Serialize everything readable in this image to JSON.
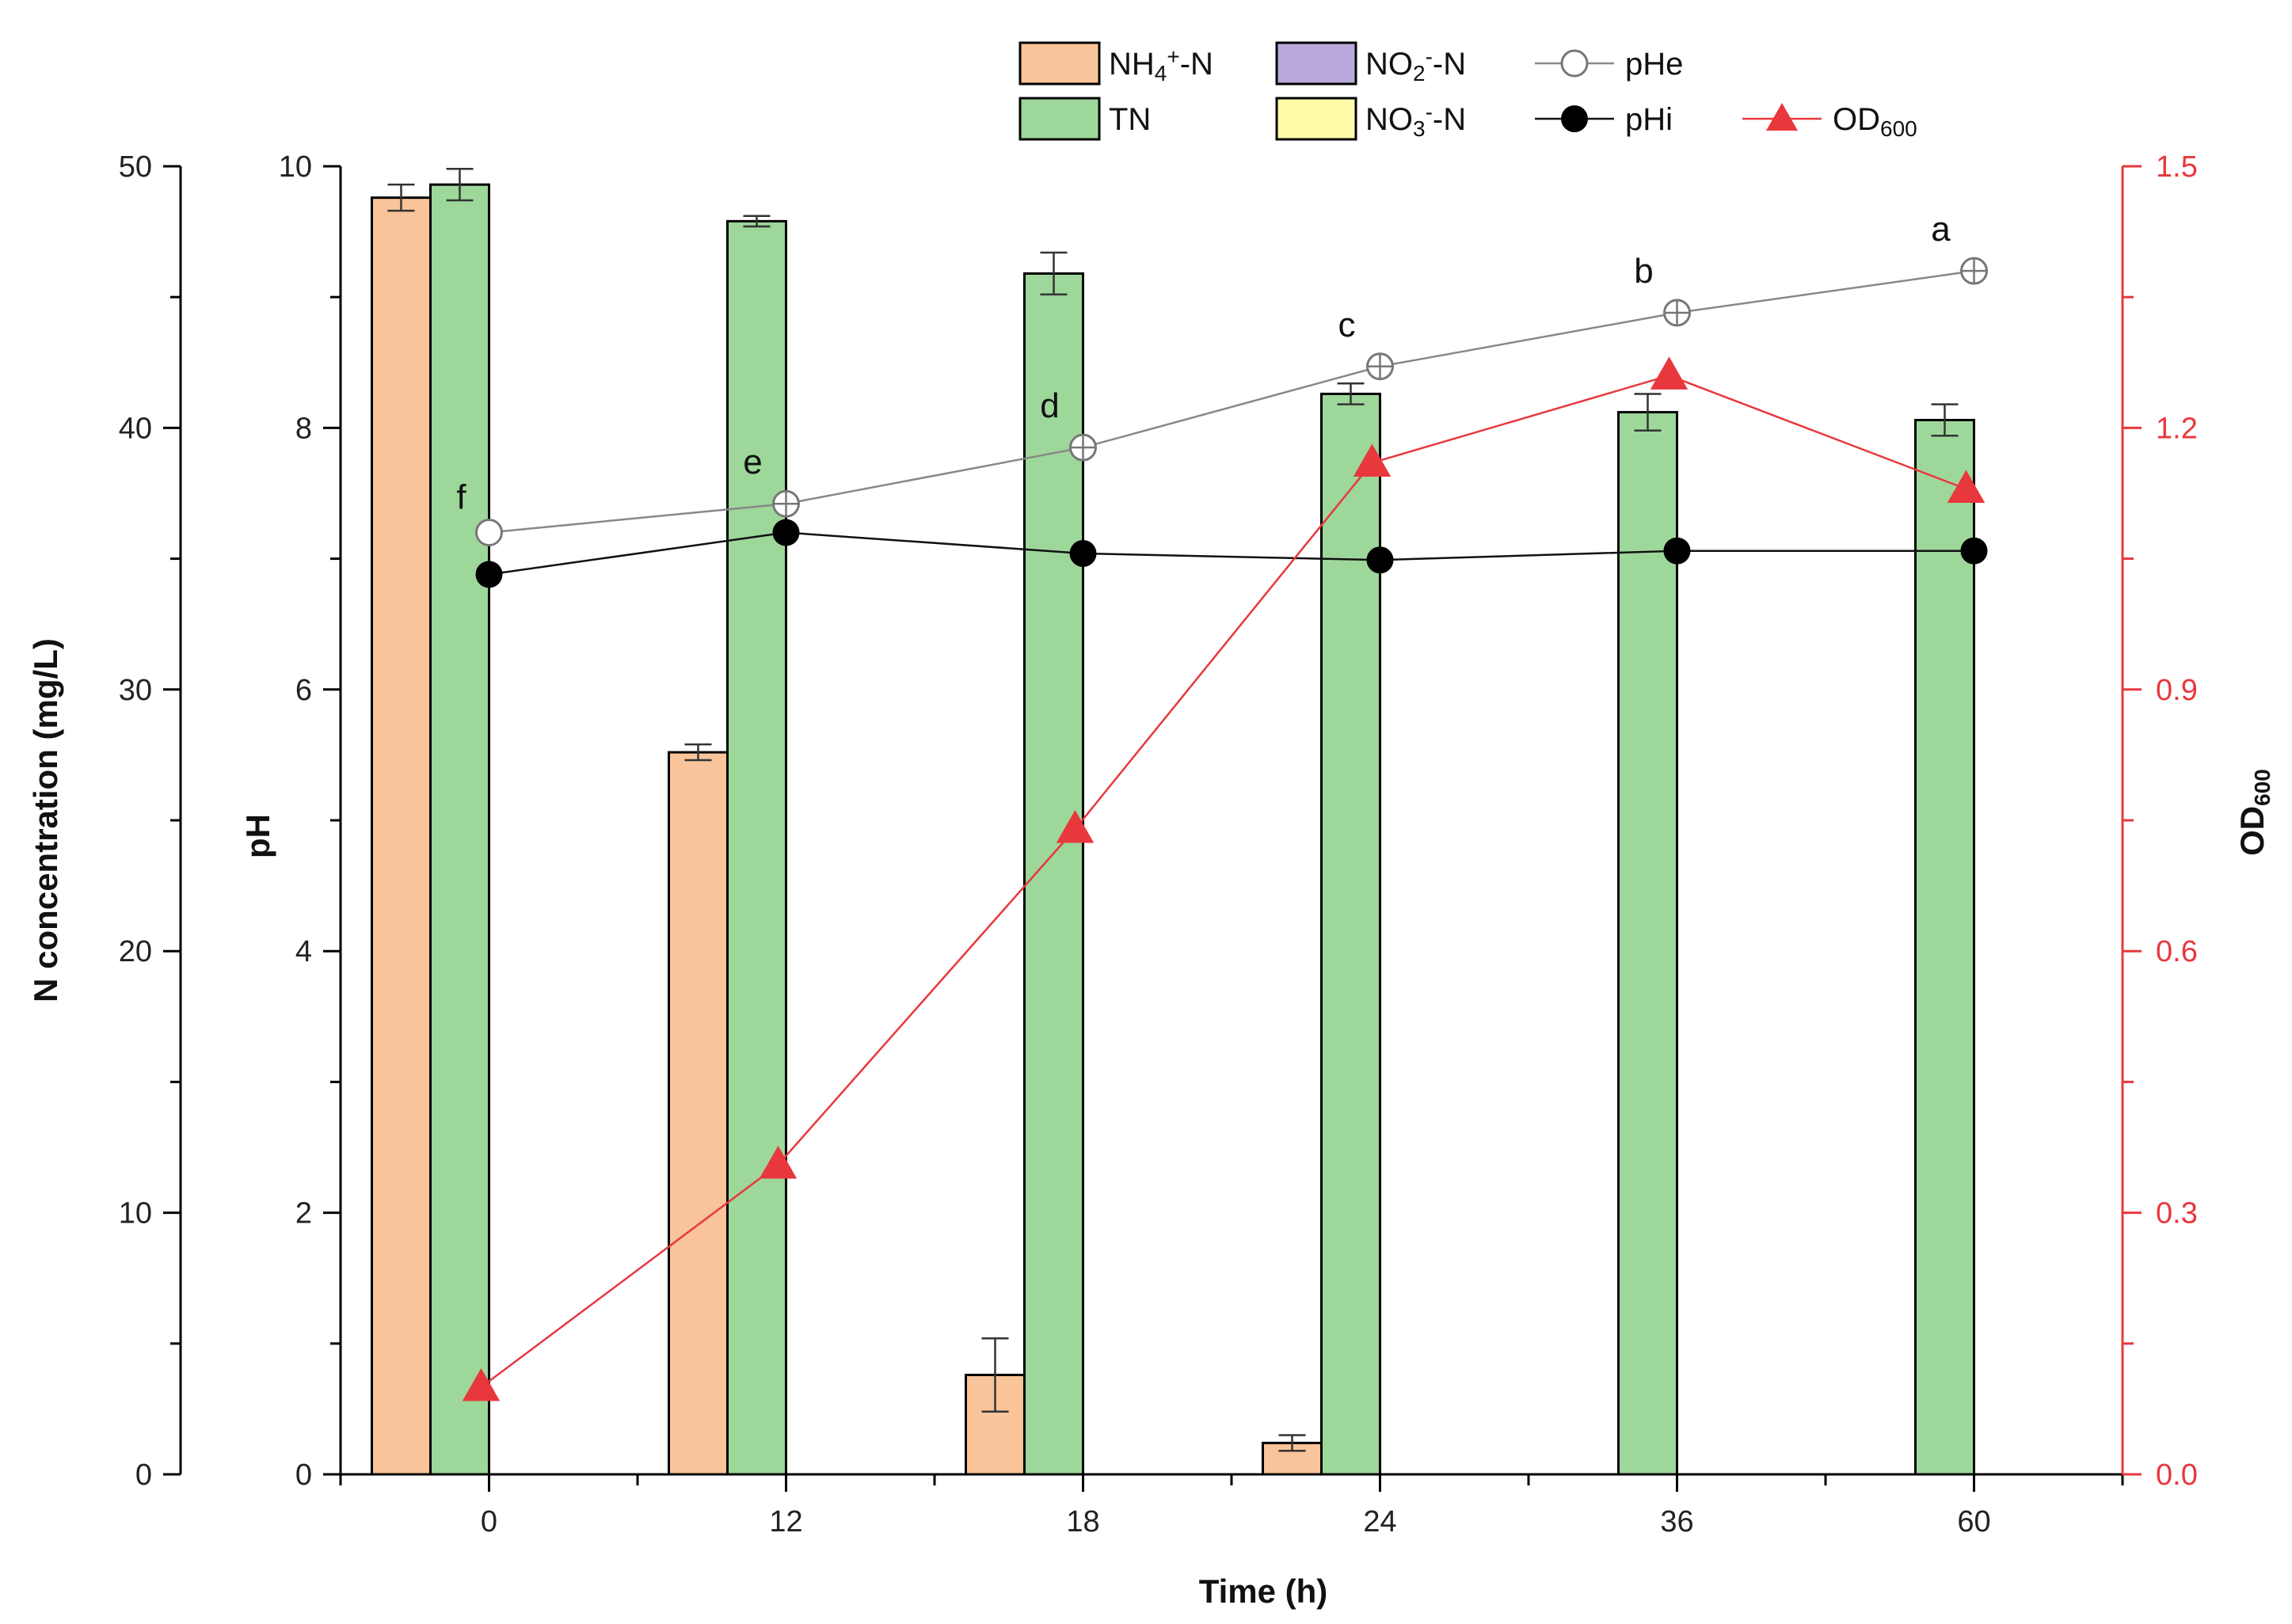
{
  "chart_data": {
    "type": "bar",
    "categories": [
      "0",
      "12",
      "18",
      "24",
      "36",
      "60"
    ],
    "xlabel": "Time (h)",
    "ylabel_left": "N concentration (mg/L)",
    "ylabel_ph": "pH",
    "ylabel_right_main": "OD",
    "ylabel_right_sub": "600",
    "ylim_left": [
      0,
      50
    ],
    "yticks_left": [
      0,
      10,
      20,
      30,
      40,
      50
    ],
    "ylim_ph": [
      0,
      10
    ],
    "yticks_ph": [
      0,
      2,
      4,
      6,
      8,
      10
    ],
    "ylim_right": [
      0,
      1.5
    ],
    "yticks_right": [
      "0.0",
      "0.3",
      "0.6",
      "0.9",
      "1.2",
      "1.5"
    ],
    "bar_series": [
      {
        "name": "NH4+-N",
        "label_main": "NH",
        "label_sub": "4",
        "label_sup": "+",
        "label_tail": "-N",
        "color": "#F9C49A",
        "values": [
          48.8,
          27.6,
          3.8,
          1.2,
          0,
          0
        ],
        "errors": [
          0.5,
          0.3,
          1.4,
          0.3,
          0,
          0
        ]
      },
      {
        "name": "TN",
        "label_main": "TN",
        "color": "#9ED79A",
        "values": [
          49.3,
          47.9,
          45.9,
          41.3,
          40.6,
          40.3
        ],
        "errors": [
          0.6,
          0.2,
          0.8,
          0.4,
          0.7,
          0.6
        ]
      },
      {
        "name": "NO2--N",
        "label_main": "NO",
        "label_sub": "2",
        "label_sup": "-",
        "label_tail": "-N",
        "color": "#B9A8D9",
        "values": [
          0,
          0,
          0,
          0,
          0,
          0
        ]
      },
      {
        "name": "NO3--N",
        "label_main": "NO",
        "label_sub": "3",
        "label_sup": "-",
        "label_tail": "-N",
        "color": "#FFFBA8",
        "values": [
          0,
          0,
          0,
          0,
          0,
          0
        ]
      }
    ],
    "line_series": [
      {
        "name": "pHe",
        "axis": "ph",
        "color": "#888888",
        "marker": "open-circle",
        "values": [
          7.2,
          7.42,
          7.85,
          8.47,
          8.88,
          9.2
        ],
        "letters": [
          "f",
          "e",
          "d",
          "c",
          "b",
          "a"
        ]
      },
      {
        "name": "pHi",
        "axis": "ph",
        "color": "#000000",
        "marker": "filled-circle",
        "values": [
          6.88,
          7.2,
          7.04,
          6.99,
          7.06,
          7.06
        ]
      },
      {
        "name": "OD600",
        "label_main": "OD",
        "label_sub": "600",
        "axis": "right",
        "color": "#E8383D",
        "marker": "triangle",
        "values": [
          0.1,
          0.355,
          0.74,
          1.16,
          1.26,
          1.13
        ]
      }
    ],
    "legend_position": "top"
  }
}
